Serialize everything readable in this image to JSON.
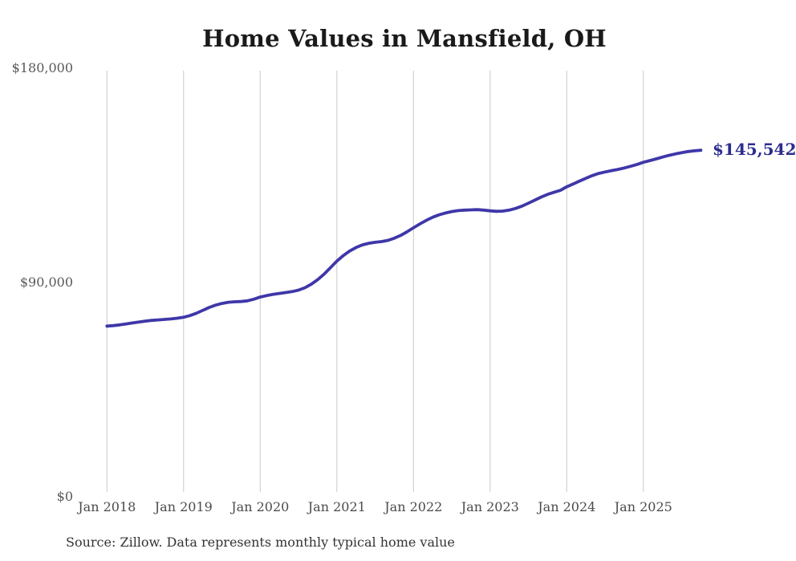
{
  "chart_data": {
    "type": "line",
    "title": "Home Values in Mansfield, OH",
    "source_note": "Source: Zillow. Data represents monthly typical home value",
    "end_label": "$145,542",
    "end_value": 145542,
    "colors": {
      "line": "#3f37a8",
      "end_label": "#2d2d8e",
      "gridline": "#c9c9c9"
    },
    "ylim": [
      0,
      180000
    ],
    "grid": "vertical-only",
    "legend_position": "none",
    "y_ticks": [
      {
        "label": "$180,000",
        "value": 180000
      },
      {
        "label": "$90,000",
        "value": 90000
      },
      {
        "label": "$0",
        "value": 0
      }
    ],
    "x_ticks": [
      {
        "label": "Jan 2018",
        "month_index": 0
      },
      {
        "label": "Jan 2019",
        "month_index": 12
      },
      {
        "label": "Jan 2020",
        "month_index": 24
      },
      {
        "label": "Jan 2021",
        "month_index": 36
      },
      {
        "label": "Jan 2022",
        "month_index": 48
      },
      {
        "label": "Jan 2023",
        "month_index": 60
      },
      {
        "label": "Jan 2024",
        "month_index": 72
      },
      {
        "label": "Jan 2025",
        "month_index": 84
      }
    ],
    "series": [
      {
        "name": "Monthly typical home value",
        "start_month": "Jan 2018",
        "end_month": "Oct 2025",
        "values": [
          71700,
          71900,
          72200,
          72600,
          73000,
          73400,
          73800,
          74100,
          74300,
          74500,
          74700,
          75000,
          75400,
          76100,
          77100,
          78300,
          79500,
          80500,
          81200,
          81700,
          81900,
          82000,
          82300,
          83000,
          83900,
          84500,
          85000,
          85400,
          85800,
          86200,
          86800,
          87800,
          89300,
          91200,
          93500,
          96200,
          99000,
          101300,
          103200,
          104700,
          105800,
          106500,
          106900,
          107200,
          107700,
          108600,
          109800,
          111300,
          113000,
          114600,
          116100,
          117400,
          118400,
          119200,
          119800,
          120200,
          120400,
          120500,
          120600,
          120400,
          120100,
          119900,
          120000,
          120400,
          121100,
          122100,
          123300,
          124600,
          125900,
          127000,
          127900,
          128700,
          130200,
          131400,
          132600,
          133800,
          134900,
          135800,
          136400,
          137000,
          137500,
          138100,
          138800,
          139600,
          140500,
          141200,
          141900,
          142700,
          143400,
          144000,
          144500,
          145000,
          145300,
          145542
        ]
      }
    ]
  }
}
